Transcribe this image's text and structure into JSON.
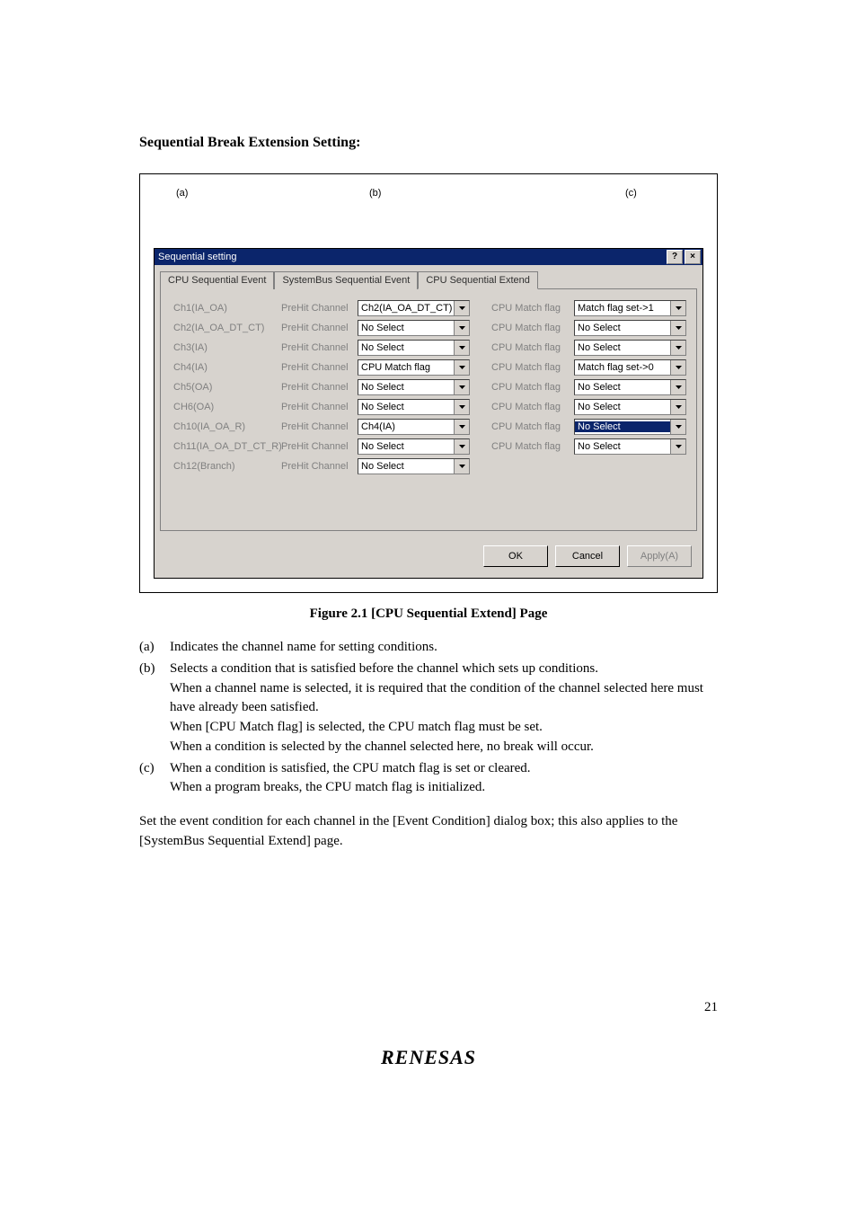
{
  "section_title": "Sequential Break Extension Setting:",
  "column_markers": {
    "a": "(a)",
    "b": "(b)",
    "c": "(c)"
  },
  "dialog": {
    "title": "Sequential setting",
    "tabs": [
      "CPU Sequential Event",
      "SystemBus Sequential Event",
      "CPU Sequential Extend"
    ],
    "active_tab": 2,
    "rows": [
      {
        "ch": "Ch1(IA_OA)",
        "pre": "PreHit Channel",
        "preval": "Ch2(IA_OA_DT_CT)",
        "match": "CPU Match flag",
        "matchval": "Match flag set->1",
        "sel": false
      },
      {
        "ch": "Ch2(IA_OA_DT_CT)",
        "pre": "PreHit Channel",
        "preval": "No Select",
        "match": "CPU Match flag",
        "matchval": "No Select",
        "sel": false
      },
      {
        "ch": "Ch3(IA)",
        "pre": "PreHit Channel",
        "preval": "No Select",
        "match": "CPU Match flag",
        "matchval": "No Select",
        "sel": false
      },
      {
        "ch": "Ch4(IA)",
        "pre": "PreHit Channel",
        "preval": "CPU Match flag",
        "match": "CPU Match flag",
        "matchval": "Match flag set->0",
        "sel": false
      },
      {
        "ch": "Ch5(OA)",
        "pre": "PreHit Channel",
        "preval": "No Select",
        "match": "CPU Match flag",
        "matchval": "No Select",
        "sel": false
      },
      {
        "ch": "CH6(OA)",
        "pre": "PreHit Channel",
        "preval": "No Select",
        "match": "CPU Match flag",
        "matchval": "No Select",
        "sel": false
      },
      {
        "ch": "Ch10(IA_OA_R)",
        "pre": "PreHit Channel",
        "preval": "Ch4(IA)",
        "match": "CPU Match flag",
        "matchval": "No Select",
        "sel": true
      },
      {
        "ch": "Ch11(IA_OA_DT_CT_R)",
        "pre": "PreHit Channel",
        "preval": "No Select",
        "match": "CPU Match flag",
        "matchval": "No Select",
        "sel": false
      },
      {
        "ch": "Ch12(Branch)",
        "pre": "PreHit Channel",
        "preval": "No Select",
        "match": null,
        "matchval": null,
        "sel": false
      }
    ],
    "buttons": {
      "ok": "OK",
      "cancel": "Cancel",
      "apply": "Apply(A)"
    }
  },
  "caption": "Figure 2.1   [CPU Sequential Extend] Page",
  "desc": {
    "a": "Indicates the channel name for setting conditions.",
    "b": [
      "Selects a condition that is satisfied before the channel which sets up conditions.",
      "When a channel name is selected, it is required that the condition of the channel selected here must have already been satisfied.",
      "When [CPU Match flag] is selected, the CPU match flag must be set.",
      "When a condition is selected by the channel selected here, no break will occur."
    ],
    "c": [
      "When a condition is satisfied, the CPU match flag is set or cleared.",
      "When a program breaks, the CPU match flag is initialized."
    ]
  },
  "para": "Set the event condition for each channel in the [Event Condition] dialog box; this also applies to the [SystemBus Sequential Extend] page.",
  "footer_brand": "RENESAS",
  "page_number": "21",
  "colors": {
    "dialog_bg": "#d7d3ce",
    "titlebar_bg": "#0b256b",
    "disabled_text": "#808080"
  }
}
